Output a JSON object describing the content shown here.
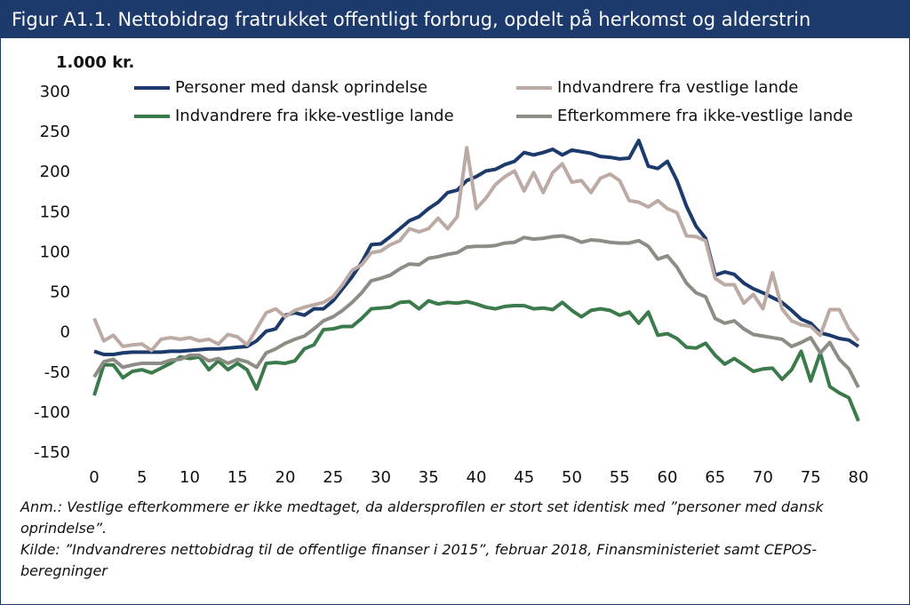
{
  "chart_data": {
    "type": "line",
    "title": "Figur A1.1. Nettobidrag fratrukket offentligt forbrug, opdelt på herkomst og alderstrin",
    "y_label": "1.000 kr.",
    "notes": [
      "Anm.: Vestlige efterkommere er ikke medtaget, da aldersprofilen er stort set identisk med ”personer med dansk oprindelse”.",
      "Kilde: ”Indvandreres nettobidrag til de offentlige finanser i 2015”, februar 2018, Finansministeriet samt CEPOS-beregninger"
    ],
    "x": [
      0,
      1,
      2,
      3,
      4,
      5,
      6,
      7,
      8,
      9,
      10,
      11,
      12,
      13,
      14,
      15,
      16,
      17,
      18,
      19,
      20,
      21,
      22,
      23,
      24,
      25,
      26,
      27,
      28,
      29,
      30,
      31,
      32,
      33,
      34,
      35,
      36,
      37,
      38,
      39,
      40,
      41,
      42,
      43,
      44,
      45,
      46,
      47,
      48,
      49,
      50,
      51,
      52,
      53,
      54,
      55,
      56,
      57,
      58,
      59,
      60,
      61,
      62,
      63,
      64,
      65,
      66,
      67,
      68,
      69,
      70,
      71,
      72,
      73,
      74,
      75,
      76,
      77,
      78,
      79,
      80
    ],
    "xlim": [
      0,
      80
    ],
    "xticks": [
      0,
      5,
      10,
      15,
      20,
      25,
      30,
      35,
      40,
      45,
      50,
      55,
      60,
      65,
      70,
      75,
      80
    ],
    "ylim": [
      -150,
      300
    ],
    "yticks": [
      -150,
      -100,
      -50,
      0,
      50,
      100,
      150,
      200,
      250,
      300
    ],
    "series": [
      {
        "name": "Personer med dansk oprindelse",
        "color": "#1c3a6b",
        "values": [
          -23,
          -27,
          -27,
          -25,
          -24,
          -24,
          -24,
          -24,
          -23,
          -23,
          -22,
          -21,
          -20,
          -20,
          -19,
          -18,
          -17,
          -10,
          2,
          5,
          22,
          25,
          22,
          30,
          30,
          40,
          55,
          70,
          88,
          110,
          111,
          120,
          130,
          140,
          145,
          155,
          163,
          175,
          178,
          190,
          195,
          202,
          204,
          210,
          214,
          225,
          222,
          225,
          229,
          222,
          228,
          226,
          224,
          220,
          219,
          217,
          218,
          240,
          208,
          205,
          214,
          190,
          158,
          133,
          118,
          72,
          76,
          73,
          62,
          55,
          50,
          44,
          38,
          28,
          17,
          12,
          0,
          -3,
          -7,
          -9,
          -17
        ]
      },
      {
        "name": "Indvandrere fra vestlige lande",
        "color": "#bcaaa4",
        "values": [
          18,
          -10,
          -3,
          -17,
          -15,
          -14,
          -22,
          -8,
          -6,
          -8,
          -6,
          -10,
          -8,
          -14,
          -2,
          -5,
          -15,
          5,
          25,
          30,
          20,
          28,
          32,
          35,
          38,
          45,
          60,
          78,
          85,
          100,
          102,
          110,
          115,
          130,
          126,
          130,
          143,
          130,
          145,
          231,
          155,
          168,
          185,
          195,
          202,
          177,
          200,
          175,
          200,
          211,
          188,
          190,
          175,
          193,
          198,
          190,
          165,
          163,
          157,
          165,
          155,
          150,
          121,
          120,
          115,
          68,
          60,
          60,
          37,
          48,
          30,
          75,
          30,
          15,
          10,
          8,
          -3,
          29,
          29,
          5,
          -10
        ]
      },
      {
        "name": "Indvandrere fra ikke-vestlige lande",
        "color": "#3b7a4b",
        "values": [
          -78,
          -40,
          -40,
          -56,
          -48,
          -46,
          -50,
          -44,
          -38,
          -30,
          -32,
          -30,
          -46,
          -35,
          -46,
          -38,
          -46,
          -70,
          -38,
          -37,
          -38,
          -35,
          -20,
          -15,
          4,
          5,
          8,
          8,
          18,
          30,
          31,
          32,
          38,
          39,
          30,
          40,
          36,
          38,
          37,
          39,
          36,
          32,
          30,
          33,
          34,
          34,
          30,
          31,
          29,
          38,
          28,
          20,
          28,
          30,
          28,
          22,
          26,
          12,
          26,
          -3,
          -1,
          -7,
          -18,
          -19,
          -13,
          -28,
          -39,
          -32,
          -40,
          -48,
          -45,
          -44,
          -58,
          -46,
          -23,
          -60,
          -25,
          -67,
          -75,
          -81,
          -110
        ]
      },
      {
        "name": "Efterkommere fra ikke-vestlige lande",
        "color": "#8d8d86",
        "values": [
          -55,
          -36,
          -33,
          -43,
          -40,
          -38,
          -38,
          -38,
          -34,
          -33,
          -28,
          -28,
          -35,
          -32,
          -38,
          -33,
          -36,
          -43,
          -25,
          -20,
          -13,
          -8,
          -4,
          5,
          15,
          20,
          28,
          38,
          50,
          65,
          68,
          72,
          80,
          86,
          85,
          93,
          95,
          98,
          100,
          107,
          108,
          108,
          109,
          112,
          113,
          119,
          117,
          118,
          120,
          121,
          118,
          113,
          116,
          115,
          113,
          112,
          112,
          115,
          108,
          92,
          96,
          82,
          62,
          50,
          45,
          18,
          12,
          15,
          5,
          -2,
          -4,
          -6,
          -8,
          -17,
          -12,
          -6,
          -25,
          -12,
          -33,
          -45,
          -68
        ]
      }
    ]
  }
}
